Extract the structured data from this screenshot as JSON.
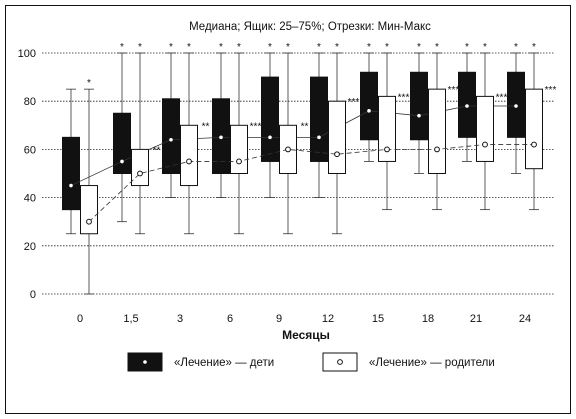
{
  "chart_data": {
    "type": "boxplot",
    "title": "Медиана; Ящик: 25–75%; Отрезки: Мин-Макс",
    "xlabel": "Месяцы",
    "ylabel": "",
    "ylim": [
      0,
      100
    ],
    "yticks": [
      0,
      20,
      40,
      60,
      80,
      100
    ],
    "grid": "horizontal dotted",
    "categories": [
      "0",
      "1,5",
      "3",
      "6",
      "9",
      "12",
      "15",
      "18",
      "21",
      "24"
    ],
    "series": [
      {
        "name": "«Лечение» — дети",
        "fill": "#111111",
        "median": [
          45,
          55,
          64,
          65,
          65,
          65,
          76,
          74,
          78,
          78
        ],
        "q1": [
          35,
          50,
          50,
          50,
          55,
          55,
          64,
          64,
          65,
          65
        ],
        "q3": [
          65,
          75,
          81,
          81,
          90,
          90,
          92,
          92,
          92,
          92
        ],
        "min": [
          25,
          30,
          40,
          40,
          40,
          40,
          55,
          50,
          55,
          50
        ],
        "max": [
          85,
          100,
          100,
          100,
          100,
          100,
          100,
          100,
          100,
          100
        ],
        "significance": [
          "",
          "*",
          "*",
          "*",
          "*",
          "*",
          "*",
          "*",
          "*",
          "*"
        ]
      },
      {
        "name": "«Лечение» — родители",
        "fill": "#ffffff",
        "median": [
          30,
          50,
          55,
          55,
          60,
          58,
          60,
          60,
          62,
          62
        ],
        "q1": [
          25,
          45,
          45,
          50,
          50,
          50,
          55,
          50,
          55,
          52
        ],
        "q3": [
          45,
          60,
          70,
          70,
          70,
          80,
          82,
          85,
          82,
          85
        ],
        "min": [
          0,
          25,
          25,
          25,
          25,
          25,
          35,
          35,
          35,
          35
        ],
        "max": [
          85,
          100,
          100,
          100,
          100,
          100,
          100,
          100,
          100,
          100
        ],
        "significance": [
          "*",
          "*",
          "*",
          "*",
          "*",
          "*",
          "*",
          "*",
          "*",
          "*"
        ],
        "dots_above": [
          "",
          "**",
          "**",
          "***",
          "**",
          "***",
          "***",
          "***",
          "***",
          "***"
        ]
      }
    ],
    "legend": {
      "placement": "bottom",
      "entries": [
        "«Лечение» — дети",
        "«Лечение» — родители"
      ]
    }
  }
}
